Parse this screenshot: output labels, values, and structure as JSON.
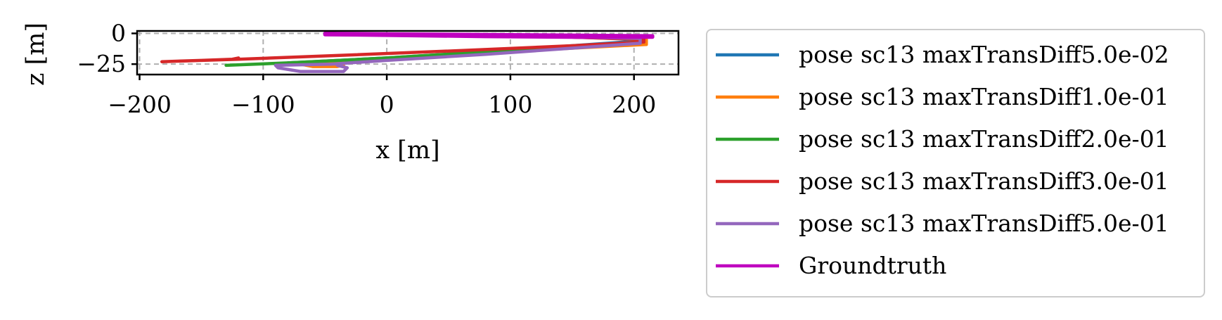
{
  "chart_data": {
    "type": "line",
    "title": "",
    "xlabel": "x [m]",
    "ylabel": "z [m]",
    "xlim": [
      -202,
      236
    ],
    "ylim": [
      -33.5,
      2
    ],
    "xticks": [
      -200,
      -100,
      0,
      100,
      200
    ],
    "xtick_labels": [
      "−200",
      "−100",
      "0",
      "100",
      "200"
    ],
    "yticks": [
      0,
      -25
    ],
    "ytick_labels": [
      "0",
      "−25"
    ],
    "grid": true,
    "legend_position": "outside-right",
    "series": [
      {
        "name": "pose sc13 maxTransDiff5.0e-02",
        "color": "#1f77b4",
        "x": [
          -47,
          0,
          80,
          150,
          206,
          206,
          150,
          80,
          0,
          -60,
          -80
        ],
        "y": [
          0,
          -1,
          -2,
          -3,
          -4,
          -6,
          -10,
          -15,
          -20,
          -23,
          -24
        ]
      },
      {
        "name": "pose sc13 maxTransDiff1.0e-01",
        "color": "#ff7f0e",
        "x": [
          -47,
          0,
          80,
          150,
          210,
          210,
          150,
          80,
          0,
          -45,
          -70,
          -60,
          -40,
          -35
        ],
        "y": [
          0,
          -1,
          -2,
          -3,
          -5,
          -9,
          -12,
          -16,
          -21,
          -24,
          -25,
          -27,
          -27,
          -26
        ]
      },
      {
        "name": "pose sc13 maxTransDiff2.0e-01",
        "color": "#2ca02c",
        "x": [
          -47,
          0,
          80,
          150,
          205,
          205,
          150,
          80,
          0,
          -80,
          -130
        ],
        "y": [
          0,
          -1,
          -2,
          -3,
          -4,
          -7,
          -11,
          -15,
          -20,
          -24,
          -26
        ]
      },
      {
        "name": "pose sc13 maxTransDiff3.0e-01",
        "color": "#d62728",
        "x": [
          -47,
          0,
          80,
          150,
          208,
          208,
          150,
          60,
          -40,
          -120,
          -182,
          -150,
          -125,
          -120
        ],
        "y": [
          0,
          -1,
          -2,
          -3,
          -5,
          -7,
          -10,
          -14,
          -18,
          -21,
          -23,
          -22,
          -21,
          -20
        ]
      },
      {
        "name": "pose sc13 maxTransDiff5.0e-01",
        "color": "#9467bd",
        "x": [
          -47,
          0,
          80,
          150,
          205,
          205,
          150,
          80,
          0,
          -45,
          -90,
          -88,
          -70,
          -35,
          -32,
          -40
        ],
        "y": [
          0,
          -1,
          -2,
          -3,
          -4,
          -8,
          -12,
          -17,
          -22,
          -25,
          -26,
          -28,
          -31,
          -31,
          -28,
          -26
        ]
      },
      {
        "name": "Groundtruth",
        "color": "#bf00bf",
        "x": [
          -50,
          0,
          80,
          150,
          215,
          215,
          150,
          80,
          0,
          -50
        ],
        "y": [
          0,
          -0.5,
          -1,
          -1.5,
          -2,
          -3,
          -3,
          -2.5,
          -1.5,
          -1
        ]
      }
    ]
  }
}
